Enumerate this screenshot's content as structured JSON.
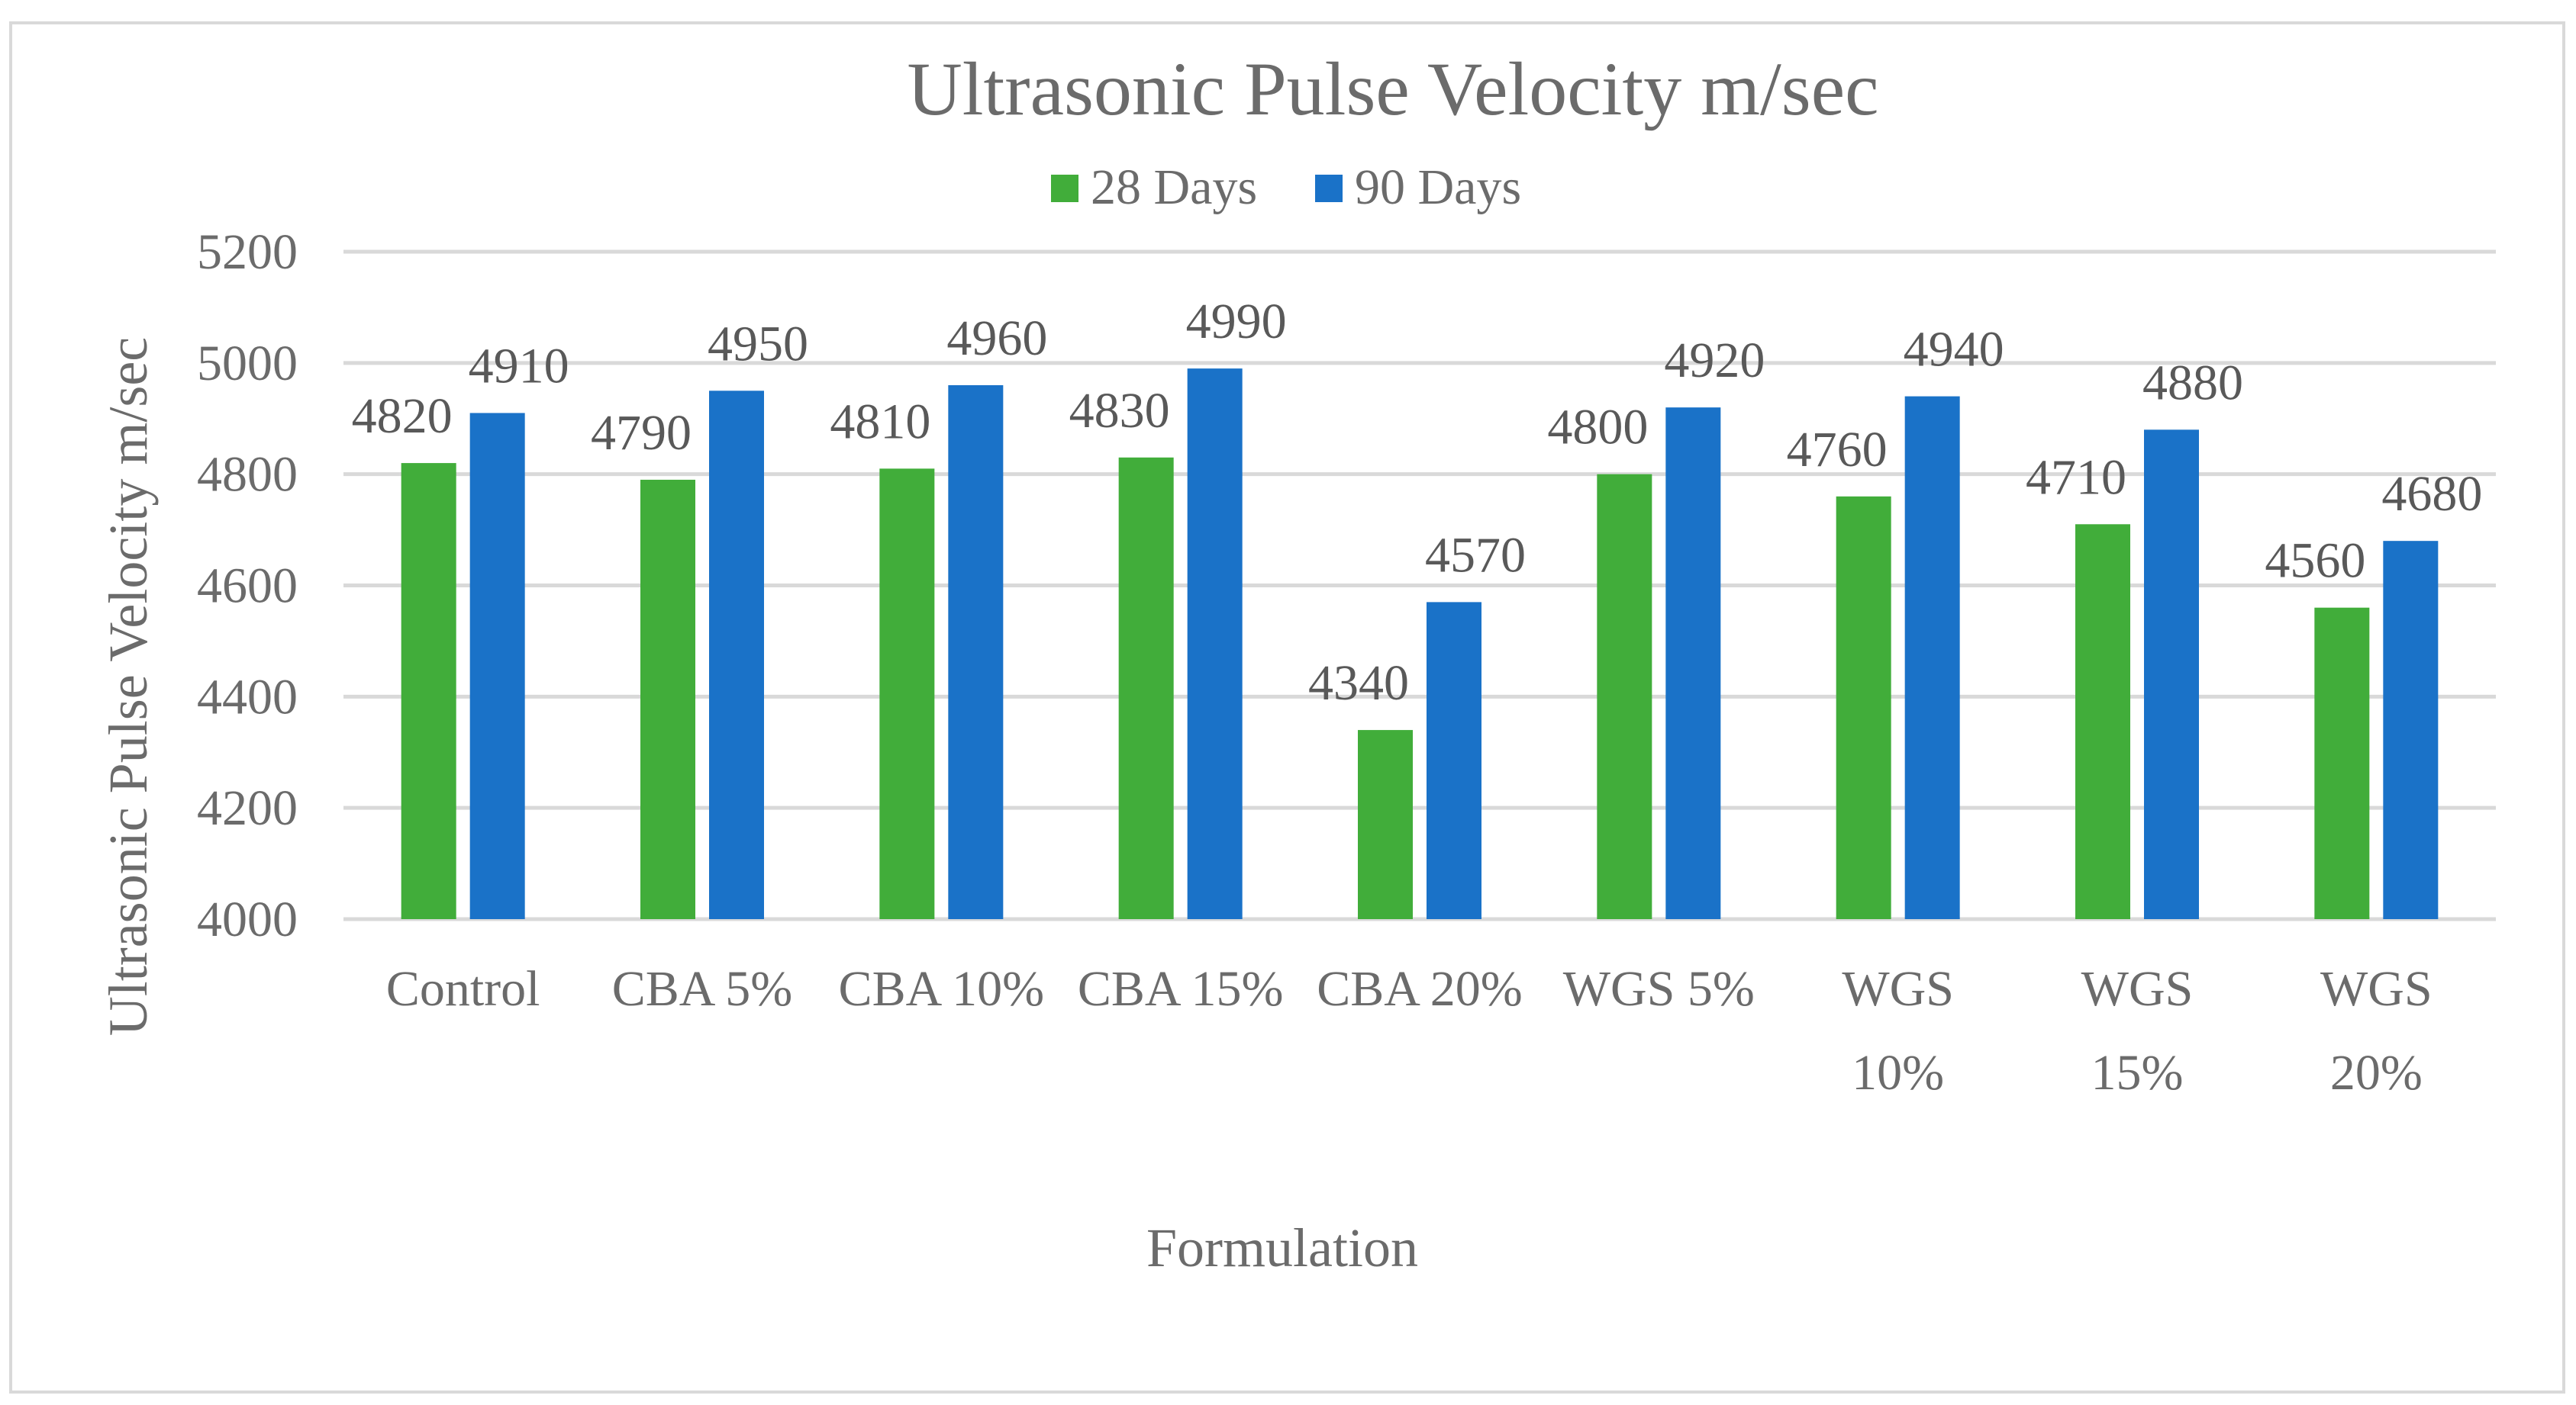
{
  "chart_data": {
    "type": "bar",
    "title": "Ultrasonic Pulse Velocity m/sec",
    "xlabel": "Formulation",
    "ylabel": "Ultrasonic Pulse Velocity m/sec",
    "ylim": [
      4000,
      5200
    ],
    "yticks": [
      4000,
      4200,
      4400,
      4600,
      4800,
      5000,
      5200
    ],
    "grid": true,
    "legend_position": "top-center",
    "categories": [
      [
        "Control"
      ],
      [
        "CBA 5%"
      ],
      [
        "CBA 10%"
      ],
      [
        "CBA 15%"
      ],
      [
        "CBA 20%"
      ],
      [
        "WGS 5%"
      ],
      [
        "WGS",
        "10%"
      ],
      [
        "WGS",
        "15%"
      ],
      [
        "WGS",
        "20%"
      ]
    ],
    "series": [
      {
        "name": "28 Days",
        "color": "#41ad3a",
        "values": [
          4820,
          4790,
          4810,
          4830,
          4340,
          4800,
          4760,
          4710,
          4560
        ]
      },
      {
        "name": "90 Days",
        "color": "#1a72c8",
        "values": [
          4910,
          4950,
          4960,
          4990,
          4570,
          4920,
          4940,
          4880,
          4680
        ]
      }
    ]
  }
}
